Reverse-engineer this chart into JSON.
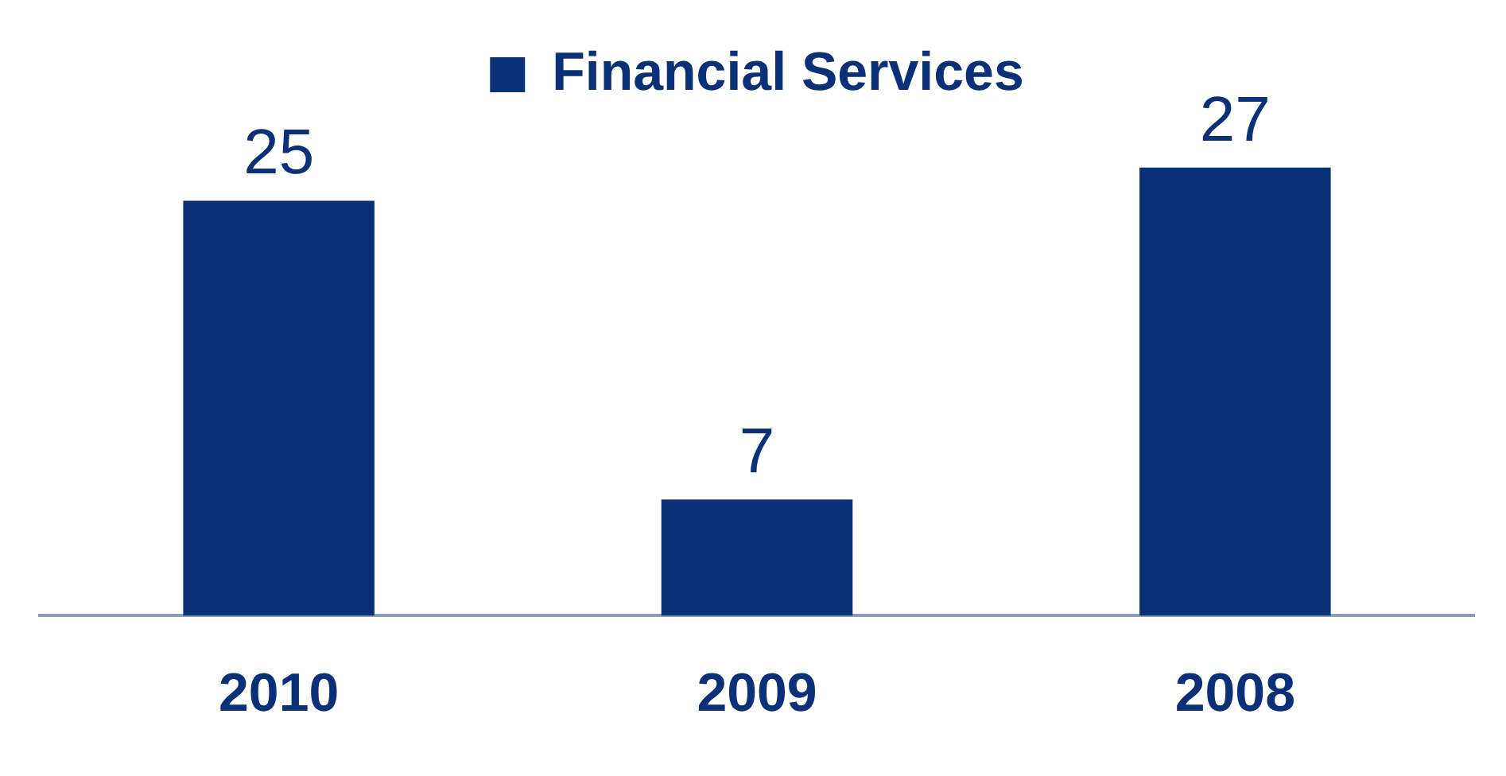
{
  "chart_data": {
    "type": "bar",
    "categories": [
      "2010",
      "2009",
      "2008"
    ],
    "series": [
      {
        "name": "Financial Services",
        "color": "#0a3178",
        "values": [
          25,
          7,
          27
        ]
      }
    ],
    "data_labels": true,
    "legend": "top",
    "grid": false
  }
}
